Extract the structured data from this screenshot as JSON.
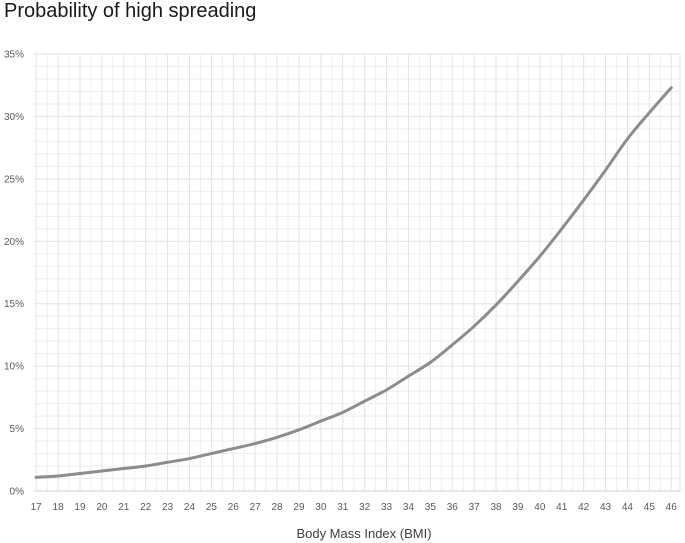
{
  "chart_data": {
    "type": "line",
    "title": "Probability of high spreading",
    "xlabel": "Body Mass Index (BMI)",
    "ylabel": "",
    "x_ticks": [
      17,
      18,
      19,
      20,
      21,
      22,
      23,
      24,
      25,
      26,
      27,
      28,
      29,
      30,
      31,
      32,
      33,
      34,
      35,
      36,
      37,
      38,
      39,
      40,
      41,
      42,
      43,
      44,
      45,
      46
    ],
    "y_ticks": [
      "0%",
      "5%",
      "10%",
      "15%",
      "20%",
      "25%",
      "30%",
      "35%"
    ],
    "xlim": [
      16.9,
      46.4
    ],
    "ylim": [
      0,
      35
    ],
    "grid": true,
    "legend": "none",
    "line_color": "#8c8c8c",
    "grid_color": "#e3e3e3",
    "series": [
      {
        "x": [
          17,
          18,
          19,
          20,
          21,
          22,
          23,
          24,
          25,
          26,
          27,
          28,
          29,
          30,
          31,
          32,
          33,
          34,
          35,
          36,
          37,
          38,
          39,
          40,
          41,
          42,
          43,
          44,
          45,
          46
        ],
        "values": [
          1.1,
          1.2,
          1.4,
          1.6,
          1.8,
          2.0,
          2.3,
          2.6,
          3.0,
          3.4,
          3.8,
          4.3,
          4.9,
          5.6,
          6.3,
          7.2,
          8.1,
          9.2,
          10.3,
          11.7,
          13.2,
          14.9,
          16.8,
          18.8,
          21.0,
          23.3,
          25.7,
          28.2,
          30.3,
          32.3
        ]
      }
    ]
  }
}
